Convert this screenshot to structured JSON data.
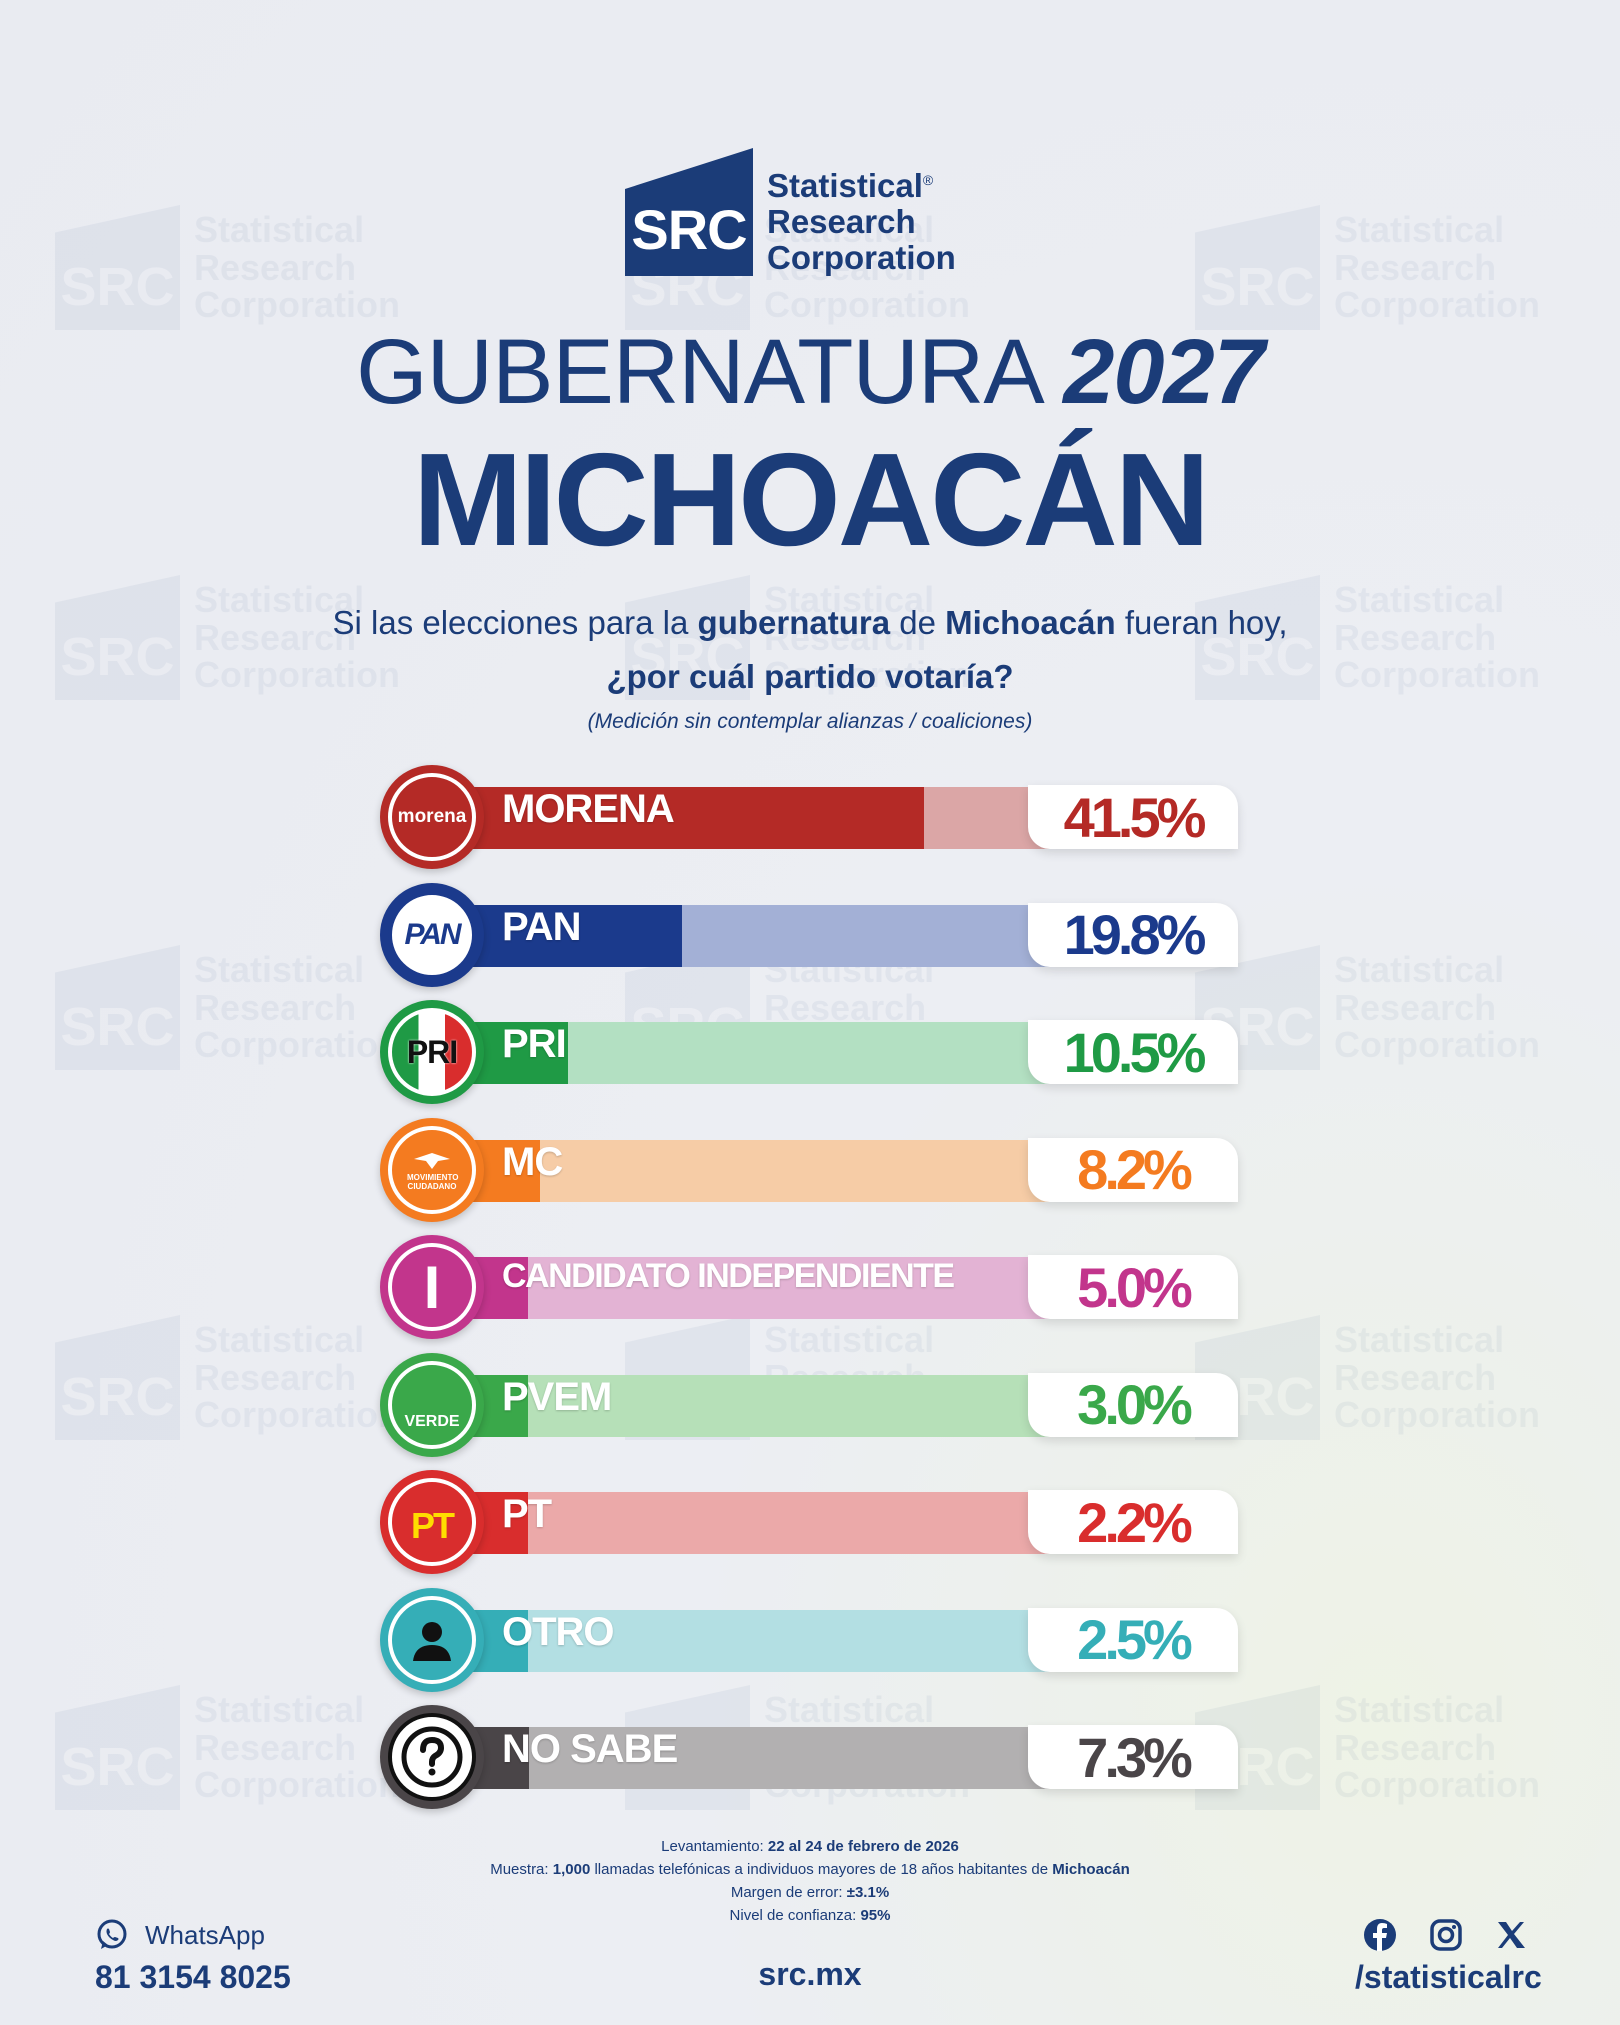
{
  "brand": {
    "logo_abbr": "SRC",
    "logo_name_lines": [
      "Statistical",
      "Research",
      "Corporation"
    ],
    "registered_mark": "®"
  },
  "header": {
    "title_light": "GUBERNATURA",
    "title_year": "2027",
    "title_main": "MICHOACÁN"
  },
  "question": {
    "line1_a": "Si las elecciones para la ",
    "line1_b": "gubernatura",
    "line1_c": " de ",
    "line1_d": "Michoacán",
    "line1_e": " fueran hoy,",
    "line2": "¿por cuál partido votaría?",
    "note": "(Medición sin contemplar alianzas / coaliciones)"
  },
  "chart_data": {
    "type": "bar",
    "title": "GUBERNATURA 2027 MICHOACÁN",
    "subtitle": "¿por cuál partido votaría?",
    "categories": [
      "MORENA",
      "PAN",
      "PRI",
      "MC",
      "CANDIDATO INDEPENDIENTE",
      "PVEM",
      "PT",
      "OTRO",
      "NO SABE"
    ],
    "values": [
      41.5,
      19.8,
      10.5,
      8.2,
      5.0,
      3.0,
      2.2,
      2.5,
      7.3
    ],
    "value_labels": [
      "41.5%",
      "19.8%",
      "10.5%",
      "8.2%",
      "5.0%",
      "3.0%",
      "2.2%",
      "2.5%",
      "7.3%"
    ],
    "unit": "%",
    "ylim": [
      0,
      50
    ],
    "colors": [
      "#b42a26",
      "#1b3a8c",
      "#1f9a45",
      "#f47b20",
      "#c2358c",
      "#3aa84a",
      "#d92d2d",
      "#35aeb7",
      "#4a4548"
    ],
    "light_colors": [
      "#dba6a6",
      "#a3b0d6",
      "#b3e0c2",
      "#f6cca6",
      "#e3b3d4",
      "#b6e0b8",
      "#eba9a9",
      "#b3dfe3",
      "#b2b0b1"
    ],
    "badges": [
      "morena",
      "PAN",
      "PRI",
      "MOVIMIENTO CIUDADANO",
      "I",
      "VERDE",
      "PT",
      "person-icon",
      "question-icon"
    ],
    "badge_icons": [
      "morena-logo-icon",
      "pan-logo-icon",
      "pri-logo-icon",
      "mc-logo-icon",
      "independent-icon",
      "pvem-logo-icon",
      "pt-logo-icon",
      "person-icon",
      "question-icon"
    ]
  },
  "footer": {
    "fieldwork_label": "Levantamiento: ",
    "fieldwork_value": "22 al 24 de febrero de 2026",
    "sample_label": "Muestra: ",
    "sample_value": "1,000",
    "sample_text": " llamadas telefónicas a individuos mayores de 18 años habitantes de ",
    "sample_place": "Michoacán",
    "margin_label": "Margen de error: ",
    "margin_value": "±3.1%",
    "confidence_label": "Nivel de confianza: ",
    "confidence_value": "95%",
    "whatsapp_label": "WhatsApp",
    "whatsapp_phone": "81 3154 8025",
    "website": "src.mx",
    "social_handle": "/statisticalrc"
  }
}
